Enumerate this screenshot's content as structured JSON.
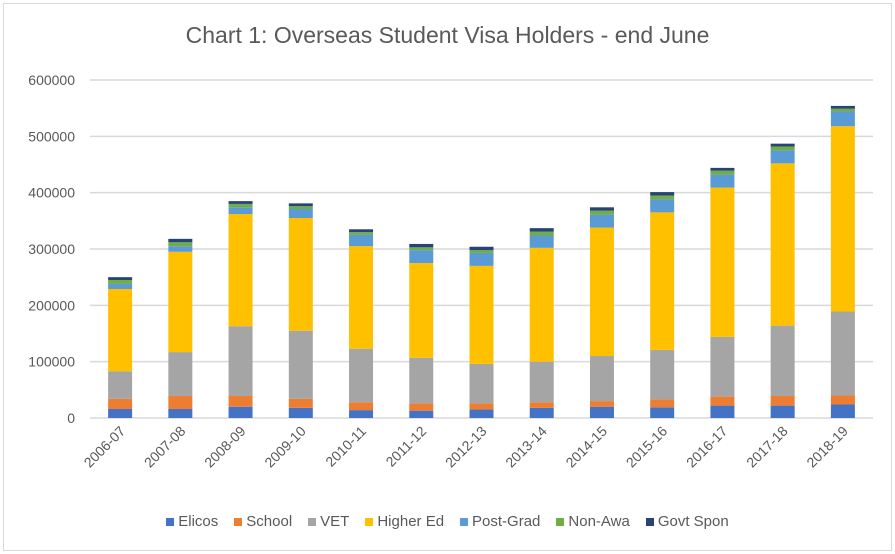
{
  "chart_data": {
    "type": "bar",
    "stacked": true,
    "title": "Chart 1: Overseas Student Visa Holders - end June",
    "xlabel": "",
    "ylabel": "",
    "ylim": [
      0,
      600000
    ],
    "yticks": [
      "0",
      "100000",
      "200000",
      "300000",
      "400000",
      "500000",
      "600000"
    ],
    "ytick_values": [
      0,
      100000,
      200000,
      300000,
      400000,
      500000,
      600000
    ],
    "grid": true,
    "legend_position": "bottom",
    "categories": [
      "2006-07",
      "2007-08",
      "2008-09",
      "2009-10",
      "2010-11",
      "2011-12",
      "2012-13",
      "2013-14",
      "2014-15",
      "2015-16",
      "2016-17",
      "2017-18",
      "2018-19"
    ],
    "series": [
      {
        "name": "Elicos",
        "color": "#4472c4",
        "values": [
          16000,
          16000,
          20000,
          18000,
          14000,
          13000,
          15000,
          18000,
          20000,
          19000,
          22000,
          22000,
          24000
        ]
      },
      {
        "name": "School",
        "color": "#ed7d31",
        "values": [
          18000,
          23000,
          19000,
          16000,
          14000,
          13000,
          11000,
          10000,
          10000,
          14000,
          16000,
          17000,
          16000
        ]
      },
      {
        "name": "VET",
        "color": "#a5a5a5",
        "values": [
          49000,
          78000,
          124000,
          121000,
          95000,
          81000,
          70000,
          72000,
          80000,
          88000,
          106000,
          125000,
          149000
        ]
      },
      {
        "name": "Higher Ed",
        "color": "#ffc000",
        "values": [
          146000,
          178000,
          199000,
          200000,
          182000,
          168000,
          174000,
          202000,
          228000,
          244000,
          265000,
          288000,
          329000
        ]
      },
      {
        "name": "Post-Grad",
        "color": "#5b9bd5",
        "values": [
          9000,
          10000,
          12000,
          16000,
          20000,
          23000,
          23000,
          22000,
          23000,
          23000,
          23000,
          23000,
          26000
        ]
      },
      {
        "name": "Non-Awa",
        "color": "#70ad47",
        "values": [
          7000,
          7000,
          6000,
          5000,
          5000,
          5000,
          5000,
          7000,
          7000,
          7000,
          7000,
          7000,
          5000
        ]
      },
      {
        "name": "Govt Spon",
        "color": "#264478",
        "values": [
          5000,
          6000,
          5000,
          5000,
          5000,
          6000,
          6000,
          6000,
          6000,
          6000,
          5000,
          5000,
          5000
        ]
      }
    ]
  }
}
